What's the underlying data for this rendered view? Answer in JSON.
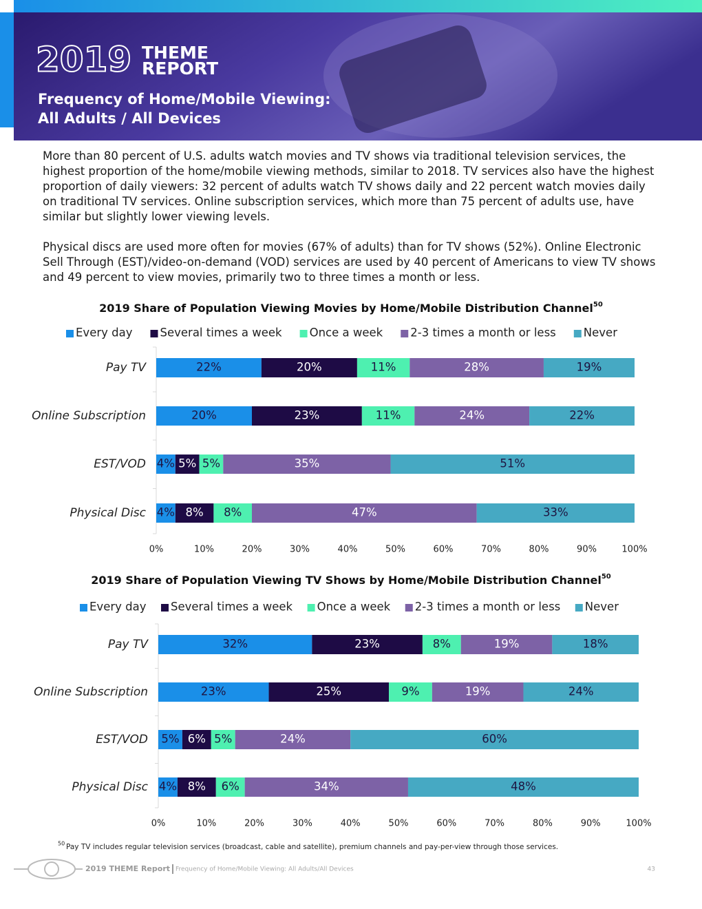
{
  "header": {
    "year": "2019",
    "brand_line1": "THEME",
    "brand_line2": "REPORT",
    "subtitle_line1": "Frequency of Home/Mobile Viewing:",
    "subtitle_line2": "All Adults / All Devices"
  },
  "paragraphs": [
    "More than 80 percent of U.S. adults watch movies and TV shows via traditional television services, the highest proportion of the home/mobile viewing methods, similar to 2018. TV services also have the highest proportion of daily viewers: 32 percent of adults watch TV shows daily and 22 percent watch movies daily on traditional TV services. Online subscription services, which more than 75 percent of adults use, have similar but slightly lower viewing levels.",
    "Physical discs are used more often for movies (67% of adults) than for TV shows (52%). Online Electronic Sell Through (EST)/video-on-demand (VOD) services are used by 40 percent of Americans to view TV shows and 49 percent to view movies, primarily two to three times a month or less."
  ],
  "chart_data": [
    {
      "type": "stacked-barh",
      "title": "2019 Share of Population Viewing Movies by Home/Mobile Distribution Channel",
      "title_superscript": "50",
      "categories": [
        "Pay TV",
        "Online Subscription",
        "EST/VOD",
        "Physical Disc"
      ],
      "series": [
        {
          "name": "Every day",
          "color": "#1a8fe8",
          "label_color": "#1e1440",
          "values": [
            22,
            20,
            4,
            4
          ],
          "value_labels": [
            "22%",
            "20%",
            "4%",
            "4%"
          ]
        },
        {
          "name": "Several times a week",
          "color": "#1e0b45",
          "label_color": "#ffffff",
          "values": [
            20,
            23,
            5,
            8
          ],
          "value_labels": [
            "20%",
            "23%",
            "5%",
            "8%"
          ]
        },
        {
          "name": "Once a week",
          "color": "#4ef0b0",
          "label_color": "#1e1440",
          "values": [
            11,
            11,
            5,
            8
          ],
          "value_labels": [
            "11%",
            "11%",
            "5%",
            "8%"
          ]
        },
        {
          "name": "2-3 times a month or less",
          "color": "#7d62a6",
          "label_color": "#ffffff",
          "values": [
            28,
            24,
            35,
            47
          ],
          "value_labels": [
            "28%",
            "24%",
            "35%",
            "47%"
          ]
        },
        {
          "name": "Never",
          "color": "#46a9c3",
          "label_color": "#1e1440",
          "values": [
            19,
            22,
            51,
            33
          ],
          "value_labels": [
            "19%",
            "22%",
            "51%",
            "33%"
          ]
        }
      ],
      "xlim": [
        0,
        100
      ],
      "xticks": [
        {
          "value": 0,
          "label": "0%"
        },
        {
          "value": 10,
          "label": "10%"
        },
        {
          "value": 20,
          "label": "20%"
        },
        {
          "value": 30,
          "label": "30%"
        },
        {
          "value": 40,
          "label": "40%"
        },
        {
          "value": 50,
          "label": "50%"
        },
        {
          "value": 60,
          "label": "60%"
        },
        {
          "value": 70,
          "label": "70%"
        },
        {
          "value": 80,
          "label": "80%"
        },
        {
          "value": 90,
          "label": "90%"
        },
        {
          "value": 100,
          "label": "100%"
        }
      ],
      "legend": "top"
    },
    {
      "type": "stacked-barh",
      "title": "2019 Share of Population Viewing TV Shows by Home/Mobile Distribution Channel",
      "title_superscript": "50",
      "categories": [
        "Pay TV",
        "Online Subscription",
        "EST/VOD",
        "Physical Disc"
      ],
      "series": [
        {
          "name": "Every day",
          "color": "#1a8fe8",
          "label_color": "#1e1440",
          "values": [
            32,
            23,
            5,
            4
          ],
          "value_labels": [
            "32%",
            "23%",
            "5%",
            "4%"
          ]
        },
        {
          "name": "Several times a week",
          "color": "#1e0b45",
          "label_color": "#ffffff",
          "values": [
            23,
            25,
            6,
            8
          ],
          "value_labels": [
            "23%",
            "25%",
            "6%",
            "8%"
          ]
        },
        {
          "name": "Once a week",
          "color": "#4ef0b0",
          "label_color": "#1e1440",
          "values": [
            8,
            9,
            5,
            6
          ],
          "value_labels": [
            "8%",
            "9%",
            "5%",
            "6%"
          ]
        },
        {
          "name": "2-3 times a month or less",
          "color": "#7d62a6",
          "label_color": "#ffffff",
          "values": [
            19,
            19,
            24,
            34
          ],
          "value_labels": [
            "19%",
            "19%",
            "24%",
            "34%"
          ]
        },
        {
          "name": "Never",
          "color": "#46a9c3",
          "label_color": "#1e1440",
          "values": [
            18,
            24,
            60,
            48
          ],
          "value_labels": [
            "18%",
            "24%",
            "60%",
            "48%"
          ]
        }
      ],
      "xlim": [
        0,
        100
      ],
      "xticks": [
        {
          "value": 0,
          "label": "0%"
        },
        {
          "value": 10,
          "label": "10%"
        },
        {
          "value": 20,
          "label": "20%"
        },
        {
          "value": 30,
          "label": "30%"
        },
        {
          "value": 40,
          "label": "40%"
        },
        {
          "value": 50,
          "label": "50%"
        },
        {
          "value": 60,
          "label": "60%"
        },
        {
          "value": 70,
          "label": "70%"
        },
        {
          "value": 80,
          "label": "80%"
        },
        {
          "value": 90,
          "label": "90%"
        },
        {
          "value": 100,
          "label": "100%"
        }
      ],
      "legend": "top"
    }
  ],
  "footnote": {
    "number": "50",
    "text": "Pay TV includes regular television services (broadcast, cable and satellite), premium channels and pay-per-view through those services."
  },
  "footer": {
    "report": "2019 THEME Report",
    "section": "Frequency of Home/Mobile Viewing: All Adults/All Devices",
    "page": "43"
  }
}
